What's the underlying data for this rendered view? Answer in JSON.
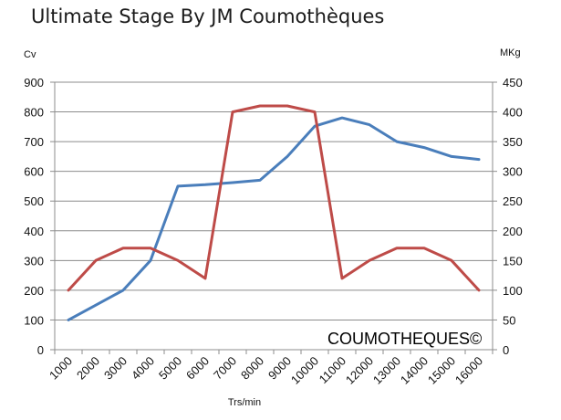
{
  "title": "Ultimate Stage By JM Coumothèques",
  "watermark": "COUMOTHEQUES©",
  "chart_data": {
    "type": "line",
    "title": "Ultimate Stage By JM Coumothèques",
    "xlabel": "Trs/min",
    "ylabel_left": "Cv",
    "ylabel_right": "MKg",
    "categories": [
      "1000",
      "2000",
      "3000",
      "4000",
      "5000",
      "6000",
      "7000",
      "8000",
      "9000",
      "10000",
      "11000",
      "12000",
      "13000",
      "14000",
      "15000",
      "16000"
    ],
    "ylim_left": [
      0,
      900
    ],
    "ylim_right": [
      0,
      450
    ],
    "yticks_left": [
      0,
      100,
      200,
      300,
      400,
      500,
      600,
      700,
      800,
      900
    ],
    "yticks_right": [
      0,
      50,
      100,
      150,
      200,
      250,
      300,
      350,
      400,
      450
    ],
    "grid": true,
    "series": [
      {
        "axis": "left",
        "color": "#4a7ebb",
        "values": [
          100,
          150,
          200,
          300,
          550,
          555,
          562,
          570,
          650,
          752,
          780,
          757,
          700,
          680,
          650,
          640
        ]
      },
      {
        "axis": "right",
        "color": "#be4b48",
        "values": [
          100,
          150,
          171,
          171,
          150,
          120,
          400,
          410,
          410,
          400,
          120,
          150,
          171,
          171,
          150,
          100
        ]
      }
    ]
  }
}
